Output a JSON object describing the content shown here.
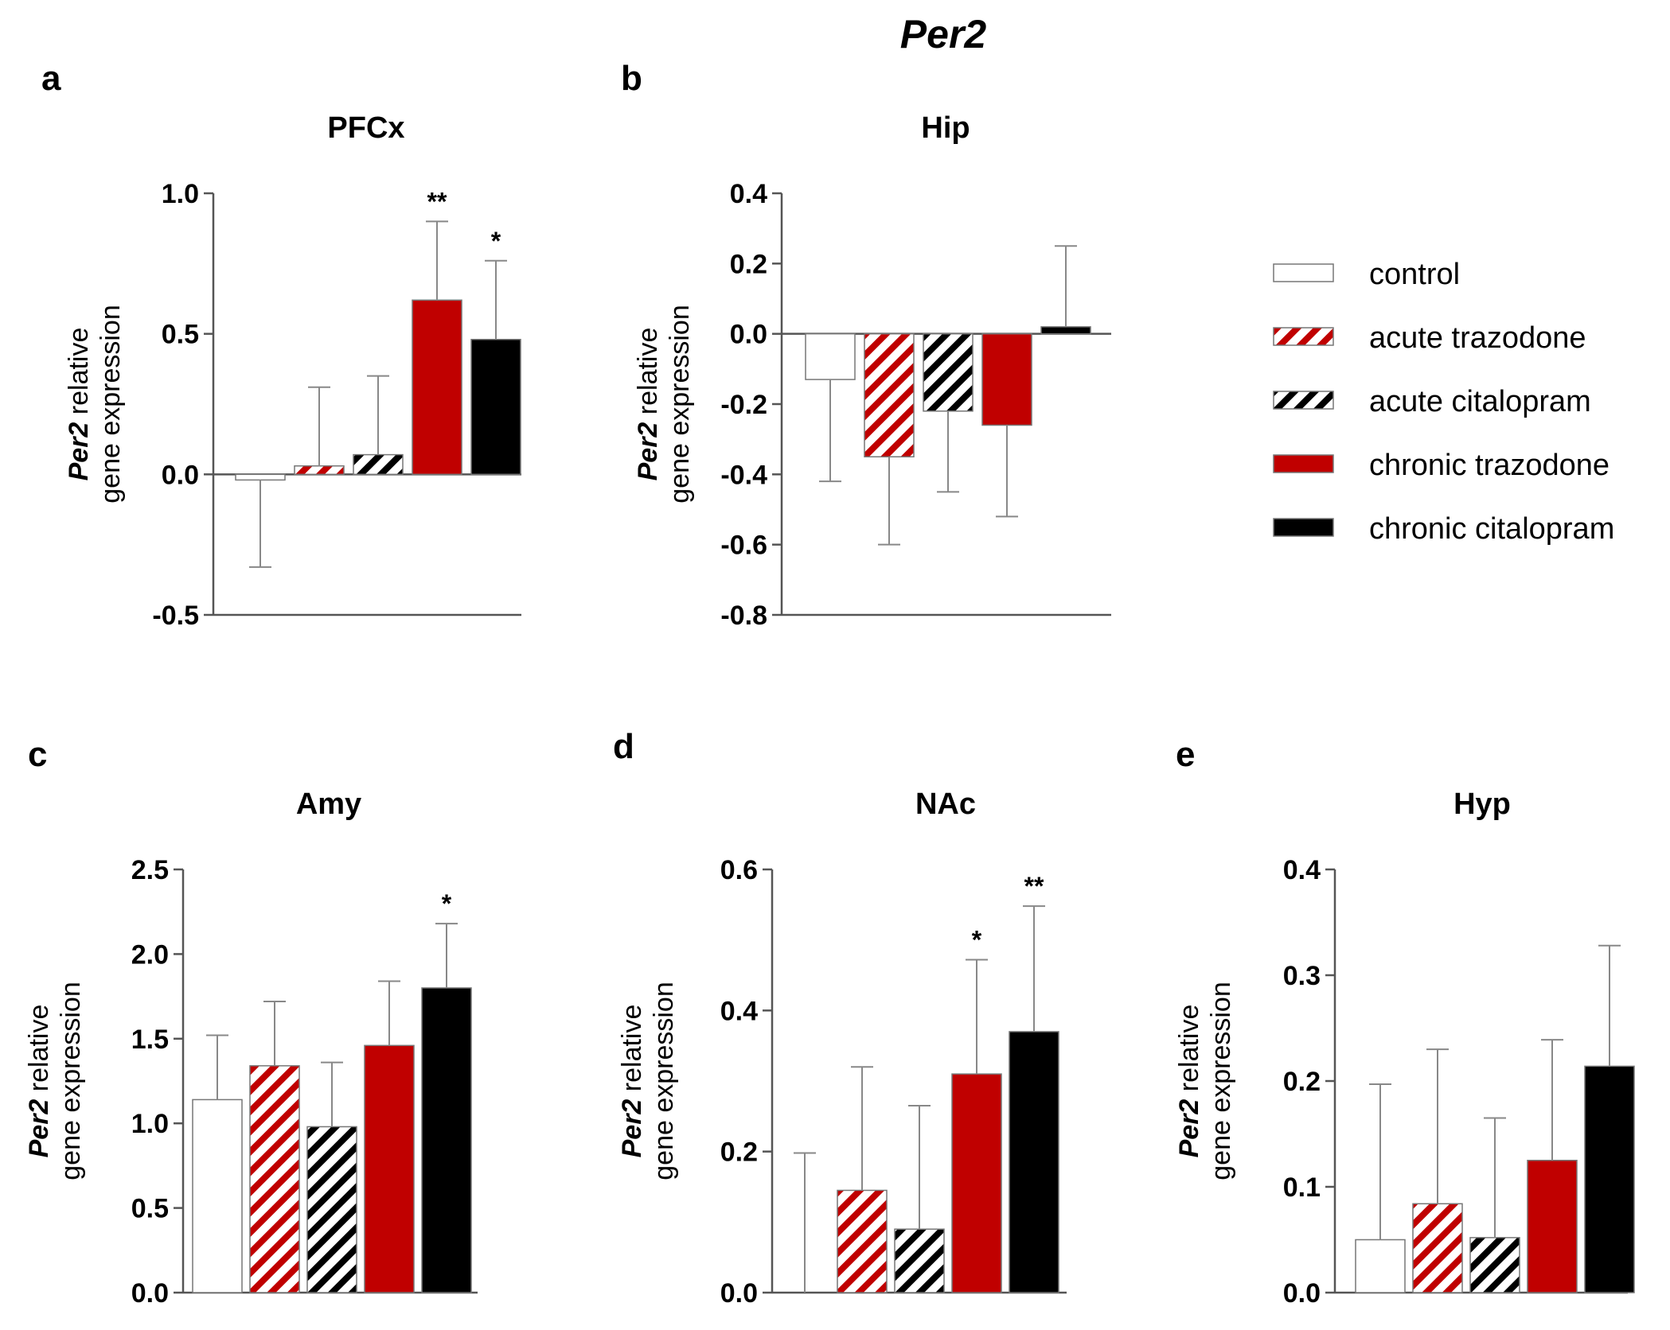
{
  "figure_title": "Per2",
  "legend": {
    "items": [
      {
        "key": "control",
        "label": "control"
      },
      {
        "key": "acute_trazodone",
        "label": "acute trazodone"
      },
      {
        "key": "acute_citalopram",
        "label": "acute citalopram"
      },
      {
        "key": "chronic_trazodone",
        "label": "chronic trazodone"
      },
      {
        "key": "chronic_citalopram",
        "label": "chronic citalopram"
      }
    ]
  },
  "colors": {
    "red": "#c00000",
    "black": "#000000",
    "white": "#ffffff",
    "axis": "#555555",
    "error": "#888888"
  },
  "chart_data": [
    {
      "type": "bar",
      "panel": "a",
      "title": "PFCx",
      "ylabel_italic": "Per2",
      "ylabel_rest": " relative",
      "ylabel_line2": "gene expression",
      "ylim": [
        -0.5,
        1.0
      ],
      "yticks": [
        -0.5,
        0.0,
        0.5,
        1.0
      ],
      "tick_labels": [
        "-0.5",
        "0.0",
        "0.5",
        "1.0"
      ],
      "categories": [
        "control",
        "acute trazodone",
        "acute citalopram",
        "chronic trazodone",
        "chronic citalopram"
      ],
      "values": [
        -0.02,
        0.03,
        0.07,
        0.62,
        0.48
      ],
      "errors": [
        0.31,
        0.28,
        0.28,
        0.28,
        0.28
      ],
      "significance": [
        "",
        "",
        "",
        "**",
        "*"
      ]
    },
    {
      "type": "bar",
      "panel": "b",
      "title": "Hip",
      "ylabel_italic": "Per2",
      "ylabel_rest": " relative",
      "ylabel_line2": "gene expression",
      "ylim": [
        -0.8,
        0.4
      ],
      "yticks": [
        -0.8,
        -0.6,
        -0.4,
        -0.2,
        0.0,
        0.2,
        0.4
      ],
      "tick_labels": [
        "-0.8",
        "-0.6",
        "-0.4",
        "-0.2",
        "0.0",
        "0.2",
        "0.4"
      ],
      "categories": [
        "control",
        "acute trazodone",
        "acute citalopram",
        "chronic trazodone",
        "chronic citalopram"
      ],
      "values": [
        -0.13,
        -0.35,
        -0.22,
        -0.26,
        0.02
      ],
      "errors": [
        0.29,
        0.25,
        0.23,
        0.26,
        0.23
      ],
      "significance": [
        "",
        "",
        "",
        "",
        ""
      ]
    },
    {
      "type": "bar",
      "panel": "c",
      "title": "Amy",
      "ylabel_italic": "Per2",
      "ylabel_rest": " relative",
      "ylabel_line2": "gene expression",
      "ylim": [
        0.0,
        2.5
      ],
      "yticks": [
        0.0,
        0.5,
        1.0,
        1.5,
        2.0,
        2.5
      ],
      "tick_labels": [
        "0.0",
        "0.5",
        "1.0",
        "1.5",
        "2.0",
        "2.5"
      ],
      "categories": [
        "control",
        "acute trazodone",
        "acute citalopram",
        "chronic trazodone",
        "chronic citalopram"
      ],
      "values": [
        1.14,
        1.34,
        0.98,
        1.46,
        1.8
      ],
      "errors": [
        0.38,
        0.38,
        0.38,
        0.38,
        0.38
      ],
      "significance": [
        "",
        "",
        "",
        "",
        "*"
      ]
    },
    {
      "type": "bar",
      "panel": "d",
      "title": "NAc",
      "ylabel_italic": "Per2",
      "ylabel_rest": " relative",
      "ylabel_line2": "gene expression",
      "ylim": [
        0.0,
        0.6
      ],
      "yticks": [
        0.0,
        0.2,
        0.4,
        0.6
      ],
      "tick_labels": [
        "0.0",
        "0.2",
        "0.4",
        "0.6"
      ],
      "categories": [
        "control",
        "acute trazodone",
        "acute citalopram",
        "chronic trazodone",
        "chronic citalopram"
      ],
      "values": [
        0.0,
        0.145,
        0.09,
        0.31,
        0.37
      ],
      "errors": [
        0.198,
        0.175,
        0.175,
        0.162,
        0.178
      ],
      "significance": [
        "",
        "",
        "",
        "*",
        "**"
      ]
    },
    {
      "type": "bar",
      "panel": "e",
      "title": "Hyp",
      "ylabel_italic": "Per2",
      "ylabel_rest": " relative",
      "ylabel_line2": "gene expression",
      "ylim": [
        0.0,
        0.4
      ],
      "yticks": [
        0.0,
        0.1,
        0.2,
        0.3,
        0.4
      ],
      "tick_labels": [
        "0.0",
        "0.1",
        "0.2",
        "0.3",
        "0.4"
      ],
      "categories": [
        "control",
        "acute trazodone",
        "acute citalopram",
        "chronic trazodone",
        "chronic citalopram"
      ],
      "values": [
        0.05,
        0.084,
        0.052,
        0.125,
        0.214
      ],
      "errors": [
        0.147,
        0.146,
        0.113,
        0.114,
        0.114
      ],
      "significance": [
        "",
        "",
        "",
        "",
        ""
      ]
    }
  ]
}
